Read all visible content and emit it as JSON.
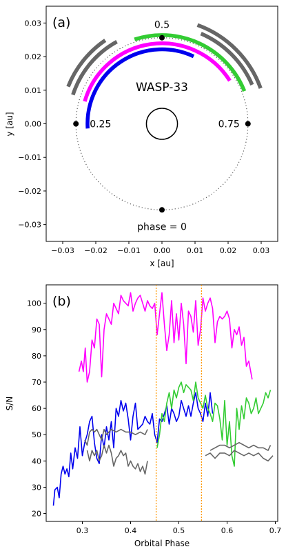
{
  "chart_data": [
    {
      "type": "scatter",
      "panel_label": "(a)",
      "title": "",
      "xlabel": "x [au]",
      "ylabel": "y [au]",
      "xlim": [
        -0.035,
        0.035
      ],
      "ylim": [
        -0.035,
        0.035
      ],
      "xticks": [
        -0.03,
        -0.02,
        -0.01,
        0.0,
        0.01,
        0.02,
        0.03
      ],
      "yticks": [
        -0.03,
        -0.02,
        -0.01,
        0.0,
        0.01,
        0.02,
        0.03
      ],
      "xtick_labels": [
        "−0.03",
        "−0.02",
        "−0.01",
        "0.00",
        "0.01",
        "0.02",
        "0.03"
      ],
      "ytick_labels": [
        "−0.03",
        "−0.02",
        "−0.01",
        "0.00",
        "0.01",
        "0.02",
        "0.03"
      ],
      "grid": false,
      "star_label": "WASP-33",
      "orbit_radius_au": 0.026,
      "star_radius_au": 0.0047,
      "phase_points": [
        {
          "phase": 0,
          "label": "phase = 0"
        },
        {
          "phase": 0.25,
          "label": "0.25"
        },
        {
          "phase": 0.5,
          "label": "0.5"
        },
        {
          "phase": 0.75,
          "label": "0.75"
        }
      ],
      "arcs": [
        {
          "color": "#0000ee",
          "radius_au": 0.0225,
          "phase_start": 0.24,
          "phase_end": 0.57
        },
        {
          "color": "#ff00ff",
          "radius_au": 0.0243,
          "phase_start": 0.295,
          "phase_end": 0.66
        },
        {
          "color": "#33cc33",
          "radius_au": 0.0268,
          "phase_start": 0.45,
          "phase_end": 0.69
        },
        {
          "color": "#666666",
          "radius_au": 0.0283,
          "phase_start": 0.3,
          "phase_end": 0.42
        },
        {
          "color": "#666666",
          "radius_au": 0.0305,
          "phase_start": 0.31,
          "phase_end": 0.405
        },
        {
          "color": "#666666",
          "radius_au": 0.0297,
          "phase_start": 0.565,
          "phase_end": 0.685
        },
        {
          "color": "#666666",
          "radius_au": 0.0317,
          "phase_start": 0.555,
          "phase_end": 0.695
        }
      ]
    },
    {
      "type": "line",
      "panel_label": "(b)",
      "title": "",
      "xlabel": "Orbital Phase",
      "ylabel": "S/N",
      "xlim": [
        0.225,
        0.705
      ],
      "ylim": [
        17,
        107
      ],
      "xticks": [
        0.3,
        0.4,
        0.5,
        0.6,
        0.7
      ],
      "yticks": [
        20,
        30,
        40,
        50,
        60,
        70,
        80,
        90,
        100
      ],
      "xtick_labels": [
        "0.3",
        "0.4",
        "0.5",
        "0.6",
        "0.7"
      ],
      "ytick_labels": [
        "20",
        "30",
        "40",
        "50",
        "60",
        "70",
        "80",
        "90",
        "100"
      ],
      "grid": false,
      "vlines": [
        {
          "x": 0.453,
          "color": "#ff9900"
        },
        {
          "x": 0.547,
          "color": "#ff9900"
        }
      ],
      "series": [
        {
          "color": "#ff00ff",
          "x": [
            0.293,
            0.298,
            0.302,
            0.306,
            0.31,
            0.315,
            0.32,
            0.325,
            0.33,
            0.335,
            0.34,
            0.345,
            0.35,
            0.355,
            0.36,
            0.365,
            0.37,
            0.375,
            0.38,
            0.385,
            0.39,
            0.395,
            0.4,
            0.405,
            0.41,
            0.415,
            0.42,
            0.425,
            0.43,
            0.435,
            0.44,
            0.445,
            0.45,
            0.455,
            0.46,
            0.465,
            0.47,
            0.475,
            0.48,
            0.485,
            0.49,
            0.495,
            0.5,
            0.505,
            0.51,
            0.515,
            0.52,
            0.525,
            0.53,
            0.535,
            0.54,
            0.545,
            0.55,
            0.555,
            0.56,
            0.565,
            0.57,
            0.575,
            0.58,
            0.585,
            0.59,
            0.595,
            0.6,
            0.605,
            0.61,
            0.615,
            0.62,
            0.625,
            0.63,
            0.635,
            0.64,
            0.645,
            0.652
          ],
          "values": [
            74,
            78,
            74,
            83,
            70,
            74,
            86,
            83,
            94,
            92,
            72,
            90,
            96,
            94,
            92,
            100,
            98,
            96,
            103,
            101,
            100,
            99,
            104,
            97,
            100,
            102,
            103,
            100,
            97,
            101,
            99,
            98,
            100,
            88,
            96,
            104,
            92,
            82,
            88,
            101,
            85,
            96,
            86,
            100,
            92,
            77,
            97,
            95,
            89,
            101,
            84,
            90,
            102,
            97,
            100,
            102,
            98,
            85,
            93,
            95,
            94,
            95,
            97,
            94,
            83,
            90,
            88,
            91,
            84,
            87,
            76,
            78,
            71
          ]
        },
        {
          "color": "#0000ee",
          "x": [
            0.24,
            0.243,
            0.248,
            0.252,
            0.256,
            0.26,
            0.264,
            0.268,
            0.272,
            0.276,
            0.28,
            0.285,
            0.29,
            0.295,
            0.3,
            0.305,
            0.31,
            0.315,
            0.32,
            0.325,
            0.33,
            0.335,
            0.34,
            0.345,
            0.35,
            0.355,
            0.36,
            0.365,
            0.37,
            0.375,
            0.38,
            0.385,
            0.39,
            0.395,
            0.4,
            0.405,
            0.41,
            0.415,
            0.42,
            0.425,
            0.43,
            0.435,
            0.44,
            0.445,
            0.45,
            0.455,
            0.46,
            0.465,
            0.47,
            0.475,
            0.48,
            0.485,
            0.49,
            0.495,
            0.5,
            0.505,
            0.51,
            0.515,
            0.52,
            0.525,
            0.53,
            0.535,
            0.54,
            0.545,
            0.55,
            0.555,
            0.56,
            0.565,
            0.57
          ],
          "values": [
            23,
            29,
            30,
            26,
            35,
            38,
            35,
            37,
            34,
            43,
            37,
            45,
            41,
            53,
            42,
            47,
            50,
            55,
            57,
            47,
            41,
            39,
            50,
            45,
            53,
            48,
            55,
            45,
            60,
            57,
            63,
            59,
            62,
            56,
            48,
            57,
            62,
            52,
            53,
            54,
            57,
            55,
            54,
            58,
            50,
            47,
            56,
            55,
            58,
            61,
            54,
            60,
            58,
            55,
            57,
            63,
            60,
            57,
            61,
            57,
            62,
            66,
            60,
            58,
            55,
            62,
            57,
            66,
            58
          ]
        },
        {
          "color": "#33cc33",
          "x": [
            0.455,
            0.46,
            0.465,
            0.47,
            0.475,
            0.48,
            0.485,
            0.49,
            0.495,
            0.5,
            0.505,
            0.51,
            0.515,
            0.52,
            0.525,
            0.53,
            0.535,
            0.54,
            0.545,
            0.55,
            0.555,
            0.56,
            0.565,
            0.57,
            0.575,
            0.58,
            0.585,
            0.59,
            0.595,
            0.6,
            0.605,
            0.61,
            0.615,
            0.62,
            0.625,
            0.63,
            0.635,
            0.64,
            0.645,
            0.65,
            0.655,
            0.66,
            0.665,
            0.67,
            0.675,
            0.68,
            0.685,
            0.69
          ],
          "values": [
            45,
            50,
            58,
            55,
            62,
            66,
            60,
            67,
            64,
            68,
            70,
            66,
            69,
            68,
            67,
            63,
            70,
            64,
            62,
            60,
            65,
            60,
            58,
            55,
            62,
            61,
            56,
            48,
            63,
            46,
            55,
            42,
            38,
            60,
            52,
            61,
            56,
            64,
            62,
            58,
            60,
            64,
            58,
            60,
            62,
            66,
            64,
            67
          ]
        },
        {
          "color": "#666666",
          "x": [
            0.305,
            0.31,
            0.315,
            0.32,
            0.325,
            0.33,
            0.335,
            0.34,
            0.345,
            0.35,
            0.36,
            0.37,
            0.38,
            0.39,
            0.4,
            0.41,
            0.42,
            0.43,
            0.435
          ],
          "values": [
            48,
            46,
            51,
            52,
            51,
            52,
            50,
            48,
            52,
            50,
            52,
            51,
            52,
            51,
            51,
            50,
            51,
            50,
            52
          ]
        },
        {
          "color": "#666666",
          "x": [
            0.31,
            0.315,
            0.32,
            0.325,
            0.33,
            0.335,
            0.34,
            0.345,
            0.35,
            0.355,
            0.36,
            0.365,
            0.37,
            0.375,
            0.38,
            0.385,
            0.39,
            0.395,
            0.4,
            0.405,
            0.41,
            0.415,
            0.42,
            0.425,
            0.43,
            0.435
          ],
          "values": [
            44,
            40,
            44,
            42,
            44,
            40,
            42,
            46,
            43,
            46,
            43,
            38,
            41,
            42,
            44,
            42,
            43,
            38,
            40,
            38,
            37,
            39,
            36,
            38,
            35,
            40
          ]
        },
        {
          "color": "#666666",
          "x": [
            0.565,
            0.575,
            0.585,
            0.595,
            0.605,
            0.615,
            0.625,
            0.635,
            0.645,
            0.655,
            0.665,
            0.675,
            0.685,
            0.69
          ],
          "values": [
            44,
            45,
            46,
            46,
            45,
            46,
            47,
            46,
            45,
            46,
            45,
            45,
            44,
            46
          ]
        },
        {
          "color": "#666666",
          "x": [
            0.555,
            0.565,
            0.575,
            0.585,
            0.595,
            0.605,
            0.615,
            0.625,
            0.635,
            0.645,
            0.655,
            0.665,
            0.675,
            0.685,
            0.695
          ],
          "values": [
            42,
            43,
            41,
            43,
            43,
            42,
            44,
            43,
            42,
            43,
            42,
            43,
            41,
            40,
            42
          ]
        }
      ]
    }
  ]
}
